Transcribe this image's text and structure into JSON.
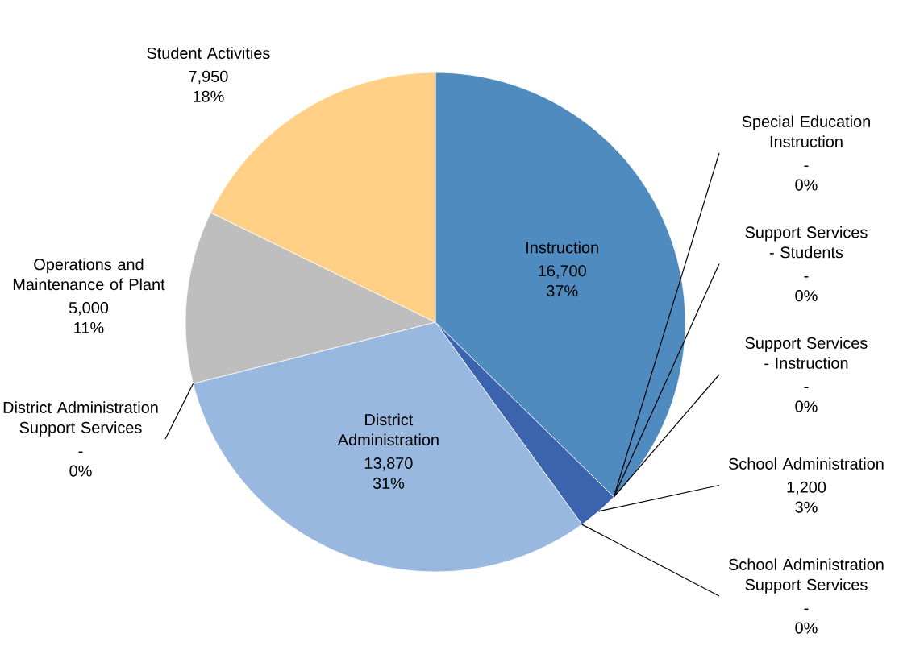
{
  "chart_data": {
    "type": "pie",
    "categories": [
      "Instruction",
      "Special Education Instruction",
      "Support Services - Students",
      "Support Services - Instruction",
      "School Administration",
      "School Administration Support Services",
      "District Administration",
      "District Administration Support Services",
      "Operations and Maintenance of Plant",
      "Student Activities"
    ],
    "values": [
      16700,
      0,
      0,
      0,
      1200,
      0,
      13870,
      0,
      5000,
      7950
    ],
    "colors": [
      "#508bbf",
      null,
      null,
      null,
      "#3c63ad",
      null,
      "#98b8df",
      null,
      "#bebebe",
      "#ffd085"
    ],
    "value_labels": [
      "16,700 37%",
      "- 0%",
      "- 0%",
      "- 0%",
      "1,200 3%",
      "- 0%",
      "13,870 31%",
      "- 0%",
      "5,000 11%",
      "7,950 18%"
    ]
  }
}
